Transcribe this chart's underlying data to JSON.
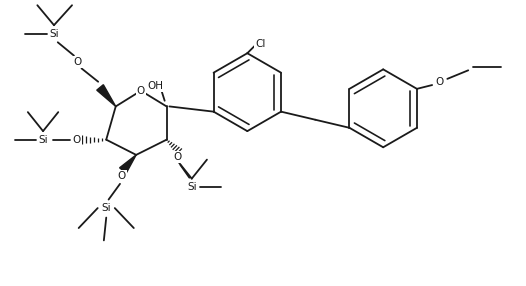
{
  "bg": "#ffffff",
  "lc": "#1a1a1a",
  "lw": 1.3,
  "fs": 7.5,
  "figsize": [
    5.26,
    2.86
  ],
  "dpi": 100,
  "xlim": [
    -0.5,
    10.2
  ],
  "ylim": [
    -0.3,
    5.6
  ]
}
